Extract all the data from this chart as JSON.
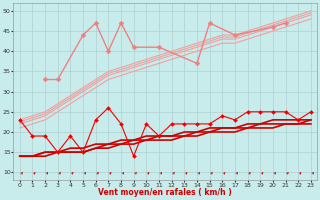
{
  "background_color": "#c8ecec",
  "grid_color": "#b0d0d0",
  "xlabel": "Vent moyen/en rafales ( km/h )",
  "xlim": [
    -0.5,
    23.5
  ],
  "ylim": [
    8,
    52
  ],
  "yticks": [
    10,
    15,
    20,
    25,
    30,
    35,
    40,
    45,
    50
  ],
  "xticks": [
    0,
    1,
    2,
    3,
    4,
    5,
    6,
    7,
    8,
    9,
    10,
    11,
    12,
    13,
    14,
    15,
    16,
    17,
    18,
    19,
    20,
    21,
    22,
    23
  ],
  "light_trend_lines": [
    [
      23,
      24,
      25,
      27,
      29,
      31,
      33,
      35,
      36,
      37,
      38,
      39,
      40,
      41,
      42,
      43,
      44,
      44,
      45,
      46,
      47,
      48,
      49,
      50
    ],
    [
      22.5,
      23.5,
      24.5,
      26.5,
      28.5,
      30.5,
      32.5,
      34.5,
      35.5,
      36.5,
      37.5,
      38.5,
      39.5,
      40.5,
      41.5,
      42.5,
      43.5,
      43.5,
      44.5,
      45.5,
      46.5,
      47.5,
      48.5,
      49.5
    ],
    [
      22,
      23,
      24,
      26,
      28,
      30,
      32,
      34,
      35,
      36,
      37,
      38,
      39,
      40,
      41,
      42,
      43,
      43,
      44,
      45,
      46,
      47,
      48,
      49
    ],
    [
      21,
      22,
      23,
      25,
      27,
      29,
      31,
      33,
      34,
      35,
      36,
      37,
      38,
      39,
      40,
      41,
      42,
      42,
      43,
      44,
      45,
      46,
      47,
      48
    ]
  ],
  "light_trend_color": "#f0a0a0",
  "light_trend_lw": 0.8,
  "light_scatter_x": [
    2,
    3,
    5,
    6,
    7,
    8,
    9,
    11,
    14,
    15,
    17,
    20,
    21
  ],
  "light_scatter_y": [
    33,
    33,
    44,
    47,
    40,
    47,
    41,
    41,
    37,
    47,
    44,
    46,
    47
  ],
  "light_scatter_color": "#f08080",
  "light_scatter_lw": 1.0,
  "light_scatter_ms": 2.5,
  "dark_trend_lines": [
    [
      14,
      14,
      15,
      15,
      15,
      15,
      16,
      17,
      17,
      18,
      18,
      19,
      19,
      19,
      20,
      20,
      21,
      21,
      21,
      22,
      22,
      22,
      22,
      23
    ],
    [
      14,
      14,
      15,
      15,
      16,
      16,
      17,
      17,
      18,
      18,
      19,
      19,
      19,
      20,
      20,
      21,
      21,
      21,
      22,
      22,
      23,
      23,
      23,
      23
    ],
    [
      14,
      14,
      14,
      15,
      15,
      15,
      16,
      16,
      17,
      17,
      18,
      18,
      18,
      19,
      19,
      20,
      20,
      20,
      21,
      21,
      21,
      22,
      22,
      22
    ]
  ],
  "dark_trend_color": "#cc0000",
  "dark_trend_lw": 1.2,
  "dark_scatter_x": [
    0,
    1,
    2,
    3,
    4,
    5,
    6,
    7,
    8,
    9,
    10,
    11,
    12,
    13,
    14,
    15,
    16,
    17,
    18,
    19,
    20,
    21,
    22,
    23
  ],
  "dark_scatter_y": [
    23,
    19,
    19,
    15,
    19,
    15,
    23,
    26,
    22,
    14,
    22,
    19,
    22,
    22,
    22,
    22,
    24,
    23,
    25,
    25,
    25,
    25,
    23,
    25
  ],
  "dark_scatter_color": "#ee0000",
  "dark_scatter_lw": 0.8,
  "dark_scatter_ms": 2.0,
  "arrow_color": "#cc0000",
  "xlabel_color": "#cc0000",
  "xlabel_fontsize": 5.5
}
